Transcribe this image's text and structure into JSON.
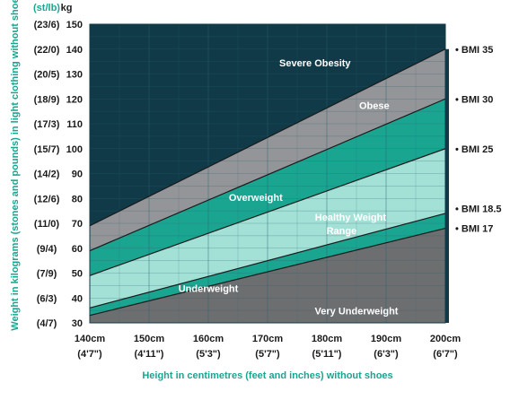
{
  "chart_data": {
    "type": "area",
    "title": "",
    "xlabel": "Height in centimetres (feet and inches) without shoes",
    "ylabel": "Weight in kilograms (stones and pounds) in light clothing without shoes",
    "y_units_label": "kg",
    "y_alt_units_label": "(st/lb)",
    "xlim": [
      140,
      200
    ],
    "ylim": [
      30,
      150
    ],
    "grid": true,
    "x_ticks": [
      {
        "value": 140,
        "label": "140cm",
        "sublabel": "(4'7\")"
      },
      {
        "value": 150,
        "label": "150cm",
        "sublabel": "(4'11\")"
      },
      {
        "value": 160,
        "label": "160cm",
        "sublabel": "(5'3\")"
      },
      {
        "value": 170,
        "label": "170cm",
        "sublabel": "(5'7\")"
      },
      {
        "value": 180,
        "label": "180cm",
        "sublabel": "(5'11\")"
      },
      {
        "value": 190,
        "label": "190cm",
        "sublabel": "(6'3\")"
      },
      {
        "value": 200,
        "label": "200cm",
        "sublabel": "(6'7\")"
      }
    ],
    "y_ticks": [
      {
        "value": 150,
        "label": "150",
        "alt": "(23/6)"
      },
      {
        "value": 140,
        "label": "140",
        "alt": "(22/0)"
      },
      {
        "value": 130,
        "label": "130",
        "alt": "(20/5)"
      },
      {
        "value": 120,
        "label": "120",
        "alt": "(18/9)"
      },
      {
        "value": 110,
        "label": "110",
        "alt": "(17/3)"
      },
      {
        "value": 100,
        "label": "100",
        "alt": "(15/7)"
      },
      {
        "value": 90,
        "label": "90",
        "alt": "(14/2)"
      },
      {
        "value": 80,
        "label": "80",
        "alt": "(12/6)"
      },
      {
        "value": 70,
        "label": "70",
        "alt": "(11/0)"
      },
      {
        "value": 60,
        "label": "60",
        "alt": "(9/4)"
      },
      {
        "value": 50,
        "label": "50",
        "alt": "(7/9)"
      },
      {
        "value": 40,
        "label": "40",
        "alt": "(6/3)"
      },
      {
        "value": 30,
        "label": "30",
        "alt": "(4/7)"
      }
    ],
    "boundaries": [
      {
        "name": "BMI 17",
        "x": [
          140,
          200
        ],
        "y": [
          33,
          68
        ]
      },
      {
        "name": "BMI 18.5",
        "x": [
          140,
          200
        ],
        "y": [
          36,
          74
        ]
      },
      {
        "name": "BMI 25",
        "x": [
          140,
          200
        ],
        "y": [
          49,
          100
        ]
      },
      {
        "name": "BMI 30",
        "x": [
          140,
          200
        ],
        "y": [
          59,
          120
        ]
      },
      {
        "name": "BMI 35",
        "x": [
          140,
          200
        ],
        "y": [
          69,
          140
        ]
      }
    ],
    "regions": [
      {
        "name": "Very Underweight",
        "color": "#6d6e70",
        "label_at": [
          185,
          33.5
        ]
      },
      {
        "name": "Underweight",
        "color": "#1aa591",
        "label_at": [
          160,
          42.5
        ]
      },
      {
        "name": "Healthy Weight",
        "name2": "Range",
        "color": "#a3e0d6",
        "label_at": [
          184,
          71
        ]
      },
      {
        "name": "Overweight",
        "color": "#1aa591",
        "label_at": [
          168,
          79
        ]
      },
      {
        "name": "Obese",
        "color": "#939598",
        "label_at": [
          188,
          116
        ]
      },
      {
        "name": "Severe Obesity",
        "color": "#103a48",
        "label_at": [
          178,
          133
        ]
      }
    ],
    "colors": {
      "boundary_line": "#1a1a1a",
      "grid": "#2a6070",
      "axis_title": "#1aa591"
    }
  }
}
